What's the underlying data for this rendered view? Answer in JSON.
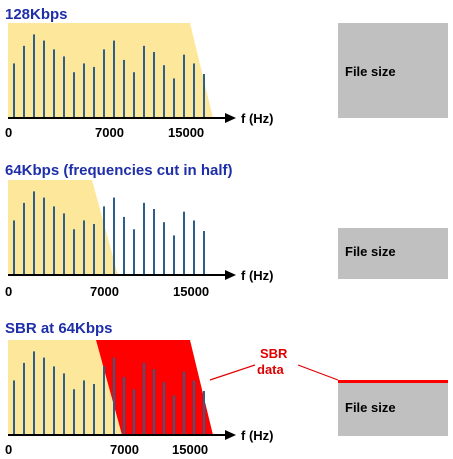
{
  "colors": {
    "title": "#1f2fa8",
    "band": "#fde79a",
    "sbr_band": "#ff0000",
    "bar": "#2e5f8a",
    "box": "#c0c0c0",
    "sbr_label": "#e00000"
  },
  "panels": [
    {
      "title": "128Kbps",
      "axis_label": "f (Hz)",
      "ticks": [
        "0",
        "7000",
        "15000"
      ],
      "file_size_label": "File size",
      "file_size_relative": 1.0
    },
    {
      "title": "64Kbps  (frequencies cut in half)",
      "axis_label": "f (Hz)",
      "ticks": [
        "0",
        "7000",
        "15000"
      ],
      "file_size_label": "File size",
      "file_size_relative": 0.5
    },
    {
      "title": "SBR at 64Kbps",
      "axis_label": "f (Hz)",
      "ticks": [
        "0",
        "7000",
        "15000"
      ],
      "file_size_label": "File size",
      "file_size_relative": 0.5,
      "sbr_label_line1": "SBR",
      "sbr_label_line2": "data"
    }
  ],
  "chart_data": {
    "type": "bar",
    "x_ticks": [
      0,
      7000,
      15000
    ],
    "x_unit": "f (Hz)",
    "spectrum_bar_heights": [
      0.62,
      0.82,
      0.95,
      0.88,
      0.78,
      0.7,
      0.52,
      0.62,
      0.58,
      0.78,
      0.88,
      0.66,
      0.52,
      0.82,
      0.75,
      0.6,
      0.45,
      0.72,
      0.62,
      0.5
    ],
    "cutoff_64k_hz": 7000
  }
}
